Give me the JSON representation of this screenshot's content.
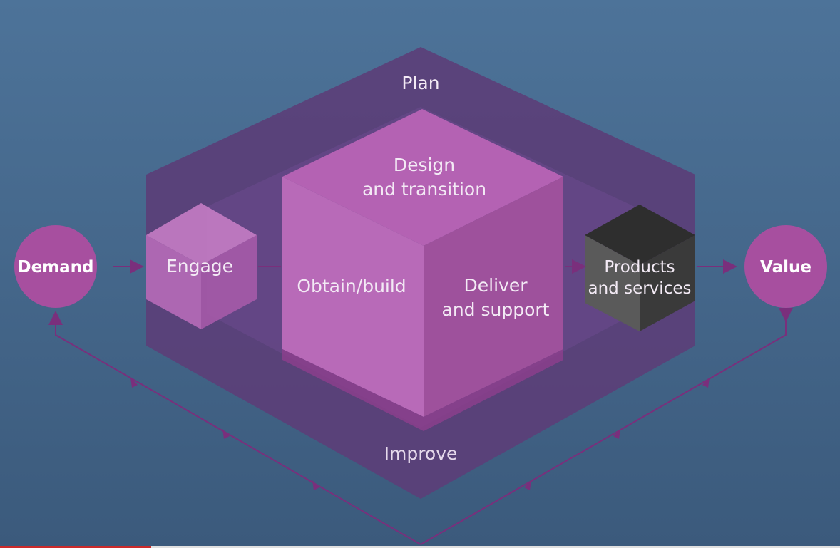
{
  "diagram": {
    "plan": "Plan",
    "improve": "Improve",
    "design_line1": "Design",
    "design_line2": "and transition",
    "obtain": "Obtain/build",
    "deliver_line1": "Deliver",
    "deliver_line2": "and support",
    "engage": "Engage",
    "products_line1": "Products",
    "products_line2": "and services",
    "demand": "Demand",
    "value": "Value"
  },
  "colors": {
    "background": "#46698d",
    "outer_frame": "#5b3f78",
    "cube_top": "#b663b4",
    "cube_front": "#b86ab8",
    "cube_right": "#9c4f9a",
    "circle": "#a74f9f",
    "dark_cube": "#3a3a3a",
    "arrow": "#6b2c6e"
  },
  "video_progress": 0.18
}
